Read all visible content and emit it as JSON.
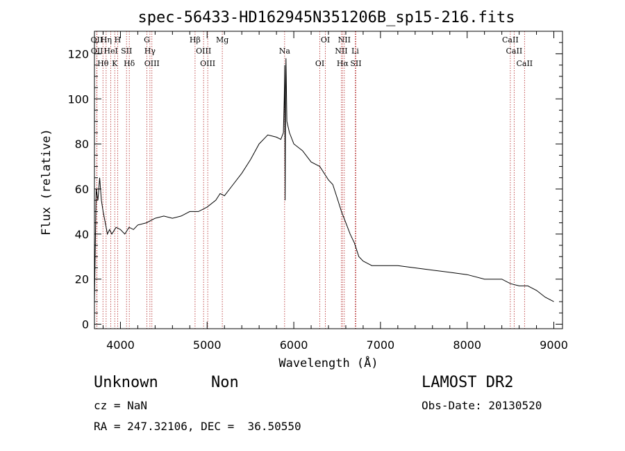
{
  "chart_data": {
    "type": "line",
    "title": "spec-56433-HD162945N351206B_sp15-216.fits",
    "xlabel": "Wavelength (Å)",
    "ylabel": "Flux (relative)",
    "xlim": [
      3700,
      9100
    ],
    "ylim": [
      -2,
      130
    ],
    "xticks": [
      4000,
      5000,
      6000,
      7000,
      8000,
      9000
    ],
    "yticks": [
      0,
      20,
      40,
      60,
      80,
      100,
      120
    ],
    "grid": false,
    "series": [
      {
        "color": "#000000",
        "x": [
          3700,
          3720,
          3740,
          3760,
          3780,
          3800,
          3825,
          3850,
          3875,
          3900,
          3950,
          4000,
          4050,
          4100,
          4150,
          4200,
          4300,
          4400,
          4500,
          4600,
          4700,
          4800,
          4900,
          5000,
          5100,
          5150,
          5200,
          5300,
          5400,
          5500,
          5600,
          5700,
          5800,
          5850,
          5880,
          5890,
          5895,
          5900,
          5905,
          5910,
          5920,
          5950,
          6000,
          6100,
          6200,
          6300,
          6400,
          6450,
          6500,
          6550,
          6600,
          6650,
          6700,
          6750,
          6800,
          6900,
          7000,
          7200,
          7400,
          7600,
          7800,
          8000,
          8200,
          8400,
          8500,
          8600,
          8700,
          8800,
          8900,
          9000
        ],
        "values": [
          10,
          60,
          55,
          65,
          55,
          50,
          45,
          40,
          42,
          40,
          43,
          42,
          40,
          43,
          42,
          44,
          45,
          47,
          48,
          47,
          48,
          50,
          50,
          52,
          55,
          58,
          57,
          62,
          67,
          73,
          80,
          84,
          83,
          82,
          85,
          100,
          115,
          55,
          100,
          118,
          90,
          85,
          80,
          77,
          72,
          70,
          64,
          62,
          56,
          50,
          45,
          40,
          36,
          30,
          28,
          26,
          26,
          26,
          25,
          24,
          23,
          22,
          20,
          20,
          18,
          17,
          17,
          15,
          12,
          10
        ]
      }
    ],
    "emission_lines": [
      {
        "label": "Hθ",
        "wavelength": 3798
      },
      {
        "label": "OII",
        "wavelength": 3727
      },
      {
        "label": "OII",
        "wavelength": 3729
      },
      {
        "label": "HeI",
        "wavelength": 3889
      },
      {
        "label": "Hη",
        "wavelength": 3835
      },
      {
        "label": "K",
        "wavelength": 3934
      },
      {
        "label": "SII",
        "wavelength": 4070
      },
      {
        "label": "H",
        "wavelength": 3968
      },
      {
        "label": "Hδ",
        "wavelength": 4102
      },
      {
        "label": "OIII",
        "wavelength": 4363
      },
      {
        "label": "Hγ",
        "wavelength": 4340
      },
      {
        "label": "G",
        "wavelength": 4305
      },
      {
        "label": "Hβ",
        "wavelength": 4861
      },
      {
        "label": "OIII",
        "wavelength": 5007
      },
      {
        "label": "OIII",
        "wavelength": 4959
      },
      {
        "label": "Mg",
        "wavelength": 5175
      },
      {
        "label": "Na",
        "wavelength": 5894
      },
      {
        "label": "OI",
        "wavelength": 6300
      },
      {
        "label": "OI",
        "wavelength": 6364
      },
      {
        "label": "Hα",
        "wavelength": 6563
      },
      {
        "label": "NII",
        "wavelength": 6548
      },
      {
        "label": "NII",
        "wavelength": 6583
      },
      {
        "label": "SII",
        "wavelength": 6716
      },
      {
        "label": "Li",
        "wavelength": 6708
      },
      {
        "label": "CaII",
        "wavelength": 8662
      },
      {
        "label": "CaII",
        "wavelength": 8542
      },
      {
        "label": "CaII",
        "wavelength": 8498
      }
    ]
  },
  "footer": {
    "object_name": "Unknown",
    "object_class": "Non",
    "cz": "cz = NaN",
    "radec": "RA = 247.32106, DEC =  36.50550",
    "survey": "LAMOST DR2",
    "obs_date": "Obs-Date: 20130520"
  }
}
